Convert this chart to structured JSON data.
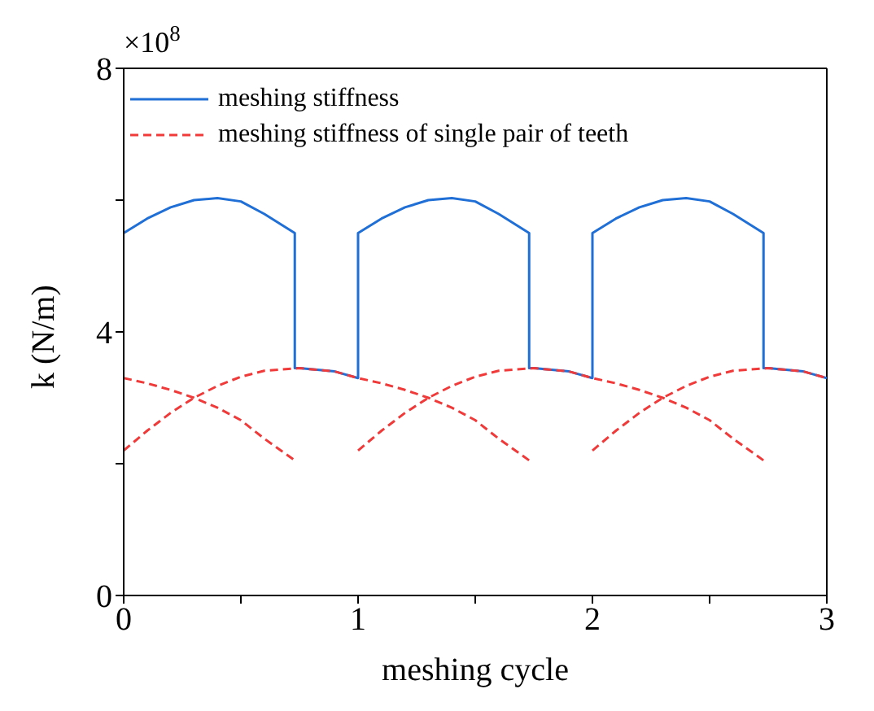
{
  "chart_data": {
    "type": "line",
    "xlabel": "meshing cycle",
    "ylabel": "k (N/m)",
    "annotations": [
      "×10$^{8}$"
    ],
    "xlim": [
      0,
      3
    ],
    "ylim": [
      0,
      8
    ],
    "xticks": [
      0,
      {
        "value": 0.5,
        "label": null
      },
      1,
      {
        "value": 1.5,
        "label": null
      },
      2,
      {
        "value": 2.5,
        "label": null
      },
      3
    ],
    "yticks": [
      0,
      {
        "value": 2,
        "label": null
      },
      4,
      {
        "value": 6,
        "label": null
      },
      8
    ],
    "legend": "top left",
    "marker": "none",
    "series": [
      {
        "name": "meshing stiffness",
        "color": "#1f6fd6",
        "line_style": "solid",
        "x": [
          0,
          0.1,
          0.2,
          0.3,
          0.4,
          0.5,
          0.6,
          0.73,
          0.73,
          0.75,
          0.9,
          1.0,
          1.0,
          1.1,
          1.2,
          1.3,
          1.4,
          1.5,
          1.6,
          1.73,
          1.73,
          1.75,
          1.9,
          2.0,
          2.0,
          2.1,
          2.2,
          2.3,
          2.4,
          2.5,
          2.6,
          2.73,
          2.73,
          2.75,
          2.9,
          3.0
        ],
        "values": [
          5.5,
          5.72,
          5.89,
          6.0,
          6.03,
          5.98,
          5.79,
          5.5,
          3.45,
          3.45,
          3.4,
          3.3,
          5.5,
          5.72,
          5.89,
          6.0,
          6.03,
          5.98,
          5.79,
          5.5,
          3.45,
          3.45,
          3.4,
          3.3,
          5.5,
          5.72,
          5.89,
          6.0,
          6.03,
          5.98,
          5.79,
          5.5,
          3.45,
          3.45,
          3.4,
          3.3
        ]
      },
      {
        "name": "meshing stiffness of single pair of teeth",
        "color": "#f03a3a",
        "line_style": "dashed",
        "x": [
          0,
          0.1,
          0.2,
          0.3,
          0.4,
          0.5,
          0.6,
          0.75,
          0.9,
          1.0,
          1.1,
          1.2,
          1.3,
          1.4,
          1.5,
          1.6,
          1.73
        ],
        "values": [
          2.2,
          2.5,
          2.77,
          3.0,
          3.18,
          3.32,
          3.41,
          3.45,
          3.4,
          3.3,
          3.22,
          3.12,
          3.0,
          2.85,
          2.66,
          2.38,
          2.05
        ]
      },
      {
        "color": "#f03a3a",
        "line_style": "dashed",
        "x": [
          0,
          0.1,
          0.2,
          0.3,
          0.4,
          0.5,
          0.6,
          0.73
        ],
        "values": [
          3.3,
          3.22,
          3.12,
          3.0,
          2.85,
          2.66,
          2.38,
          2.05
        ]
      },
      {
        "color": "#f03a3a",
        "line_style": "dashed",
        "x": [
          1.0,
          1.1,
          1.2,
          1.3,
          1.4,
          1.5,
          1.6,
          1.75,
          1.9,
          2.0,
          2.1,
          2.2,
          2.3,
          2.4,
          2.5,
          2.6,
          2.73
        ],
        "values": [
          2.2,
          2.5,
          2.77,
          3.0,
          3.18,
          3.32,
          3.41,
          3.45,
          3.4,
          3.3,
          3.22,
          3.12,
          3.0,
          2.85,
          2.66,
          2.38,
          2.05
        ]
      },
      {
        "color": "#f03a3a",
        "line_style": "dashed",
        "x": [
          2.0,
          2.1,
          2.2,
          2.3,
          2.4,
          2.5,
          2.6,
          2.75,
          2.9,
          3.0
        ],
        "values": [
          2.2,
          2.5,
          2.77,
          3.0,
          3.18,
          3.32,
          3.41,
          3.45,
          3.4,
          3.3
        ]
      }
    ]
  }
}
